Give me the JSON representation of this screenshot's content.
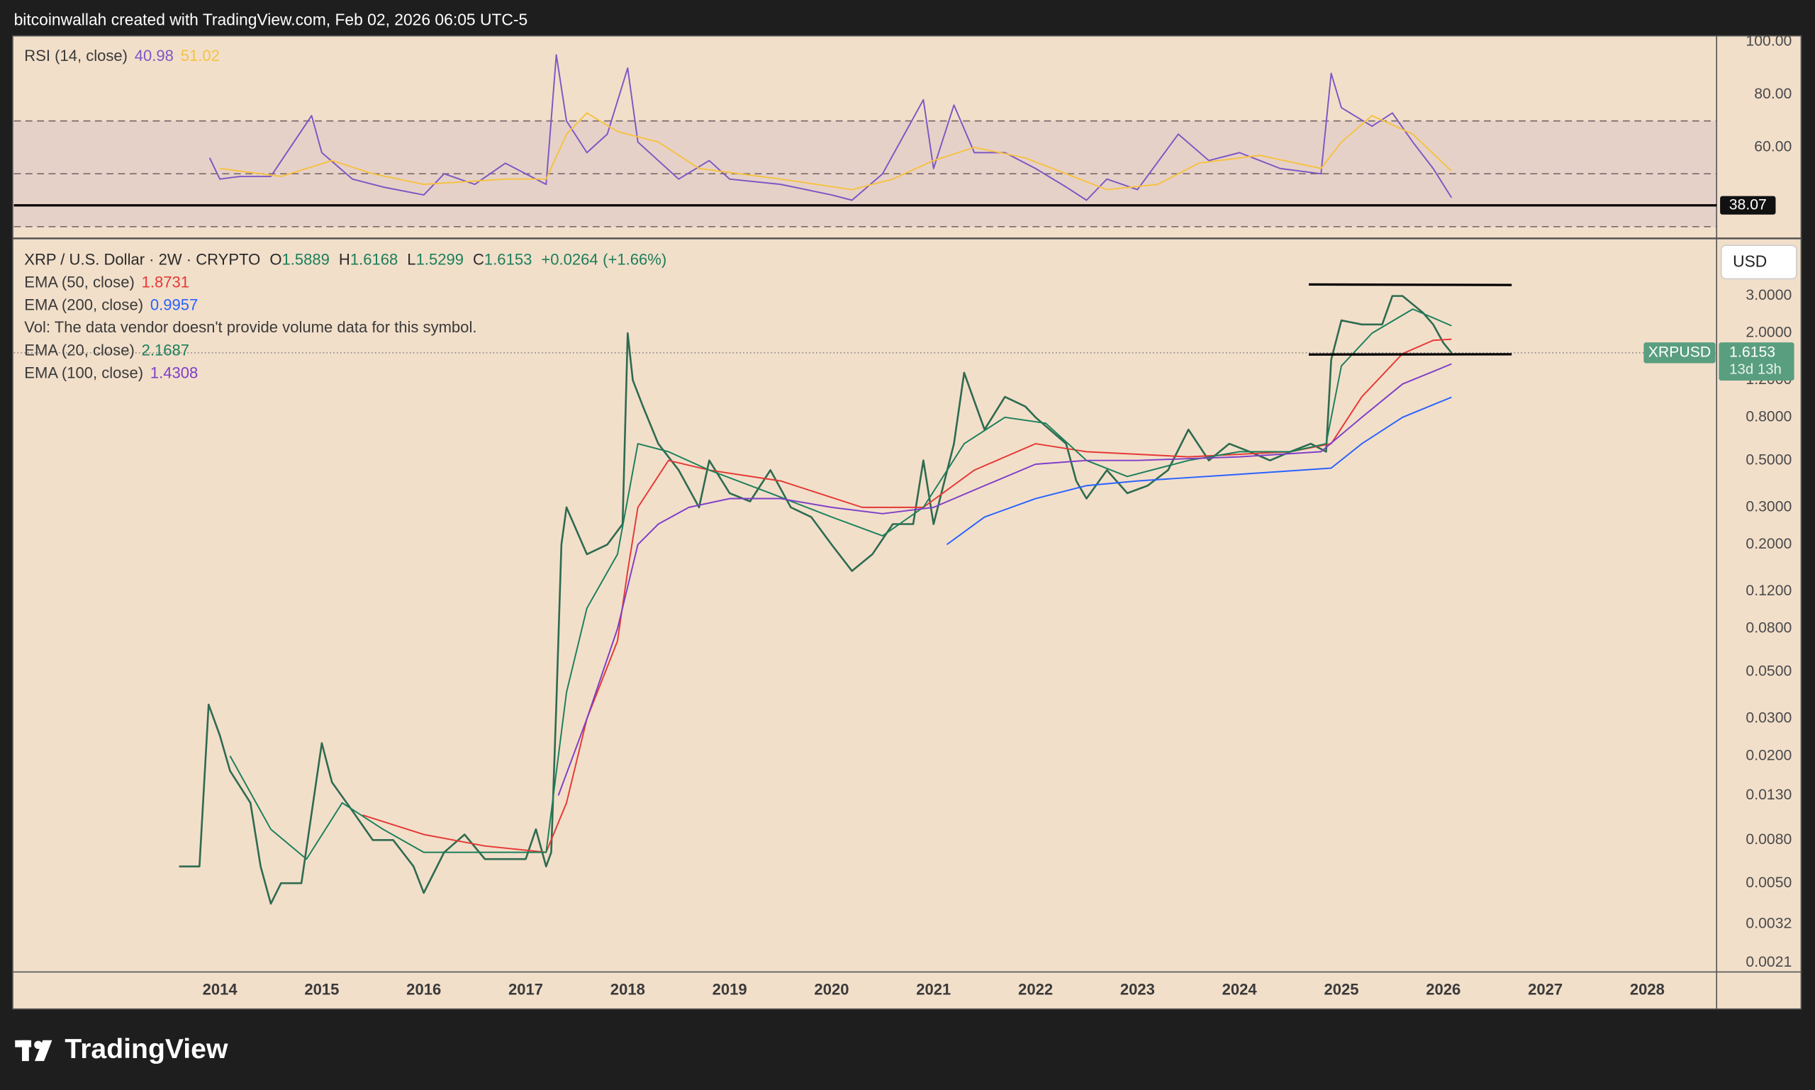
{
  "header": "bitcoinwallah created with TradingView.com, Feb 02, 2026 06:05 UTC-5",
  "footer_logo": "TradingView",
  "chart_data": [
    {
      "type": "line",
      "title": "RSI (14, close)",
      "xlim": [
        2011.98,
        2028.68
      ],
      "ylim": [
        26,
        101.3
      ],
      "yticks": [
        {
          "value": 100,
          "label": "100.00"
        },
        {
          "value": 80,
          "label": "80.00"
        },
        {
          "value": 60,
          "label": "60.00"
        }
      ],
      "levels": [
        70,
        50,
        30
      ],
      "band": [
        30,
        70
      ],
      "band_color": "#7e57c2",
      "hline": 38.07,
      "series": [
        {
          "color": "#7e57c2",
          "legend_value": 40.98,
          "x": [
            2013.9,
            2014.0,
            2014.2,
            2014.5,
            2014.9,
            2015.0,
            2015.3,
            2015.6,
            2016.0,
            2016.2,
            2016.5,
            2016.8,
            2017.0,
            2017.2,
            2017.3,
            2017.4,
            2017.6,
            2017.8,
            2018.0,
            2018.1,
            2018.5,
            2018.8,
            2019.0,
            2019.5,
            2020.0,
            2020.2,
            2020.5,
            2020.9,
            2021.0,
            2021.2,
            2021.4,
            2021.7,
            2022.0,
            2022.3,
            2022.5,
            2022.7,
            2023.0,
            2023.4,
            2023.7,
            2024.0,
            2024.4,
            2024.8,
            2024.9,
            2025.0,
            2025.3,
            2025.5,
            2025.7,
            2025.9,
            2026.08
          ],
          "values": [
            56,
            48,
            49,
            49,
            72,
            58,
            48,
            45,
            42,
            50,
            46,
            54,
            50,
            46,
            95,
            70,
            58,
            65,
            90,
            62,
            48,
            55,
            48,
            46,
            42,
            40,
            50,
            78,
            52,
            76,
            58,
            58,
            52,
            45,
            40,
            48,
            44,
            65,
            55,
            58,
            52,
            50,
            88,
            75,
            68,
            73,
            62,
            52,
            40.98
          ]
        },
        {
          "color": "#f5c242",
          "legend_value": 51.02,
          "x": [
            2014.0,
            2014.6,
            2015.1,
            2015.5,
            2016.0,
            2016.8,
            2017.2,
            2017.4,
            2017.6,
            2017.9,
            2018.3,
            2018.7,
            2019.5,
            2020.2,
            2020.6,
            2021.0,
            2021.4,
            2021.9,
            2022.3,
            2022.7,
            2023.2,
            2023.6,
            2024.2,
            2024.8,
            2025.0,
            2025.3,
            2025.7,
            2026.08
          ],
          "values": [
            52,
            49,
            55,
            50,
            46,
            48,
            48,
            65,
            73,
            66,
            62,
            52,
            48,
            44,
            48,
            55,
            60,
            56,
            50,
            44,
            46,
            54,
            57,
            52,
            62,
            72,
            65,
            51.02
          ]
        }
      ]
    },
    {
      "type": "line",
      "title": "XRP / U.S. Dollar · 2W · CRYPTO",
      "ohlc": [
        {
          "label": "O",
          "value": 1.5889
        },
        {
          "label": "H",
          "value": 1.6168
        },
        {
          "label": "L",
          "value": 1.5299
        },
        {
          "label": "C",
          "value": 1.6153
        }
      ],
      "change": {
        "value": 0.0264,
        "label": "+0.0264"
      },
      "change_percent": {
        "value": 1.66,
        "label": "(+1.66%)"
      },
      "volume_note": "Vol: The data vendor doesn't provide volume data for this symbol.",
      "currency": "USD",
      "last_price": {
        "symbol": "XRPUSD",
        "value": 1.6153,
        "countdown": "13d 13h",
        "color": "#5a9e80"
      },
      "log_scale": true,
      "xlim": [
        2011.98,
        2028.68
      ],
      "xticks": [
        2014,
        2015,
        2016,
        2017,
        2018,
        2019,
        2020,
        2021,
        2022,
        2023,
        2024,
        2025,
        2026,
        2027,
        2028
      ],
      "ylim": [
        0.00195,
        5.41
      ],
      "yticks": [
        {
          "value": 3,
          "label": "3.0000"
        },
        {
          "value": 2,
          "label": "2.0000"
        },
        {
          "value": 1.2,
          "label": "1.2000"
        },
        {
          "value": 0.8,
          "label": "0.8000"
        },
        {
          "value": 0.5,
          "label": "0.5000"
        },
        {
          "value": 0.3,
          "label": "0.3000"
        },
        {
          "value": 0.2,
          "label": "0.2000"
        },
        {
          "value": 0.12,
          "label": "0.1200"
        },
        {
          "value": 0.08,
          "label": "0.0800"
        },
        {
          "value": 0.05,
          "label": "0.0500"
        },
        {
          "value": 0.03,
          "label": "0.0300"
        },
        {
          "value": 0.02,
          "label": "0.0200"
        },
        {
          "value": 0.013,
          "label": "0.0130"
        },
        {
          "value": 0.008,
          "label": "0.0080"
        },
        {
          "value": 0.005,
          "label": "0.0050"
        },
        {
          "value": 0.0032,
          "label": "0.0032"
        },
        {
          "value": 0.0021,
          "label": "0.0021"
        }
      ],
      "trendlines": [
        {
          "x": [
            2024.68,
            2026.67
          ],
          "y": [
            3.4,
            3.38
          ]
        },
        {
          "x": [
            2024.68,
            2026.67
          ],
          "y": [
            1.585,
            1.59
          ]
        }
      ],
      "series": [
        {
          "color": "#2e6b50",
          "x": [
            2013.6,
            2013.8,
            2013.89,
            2014.0,
            2014.1,
            2014.3,
            2014.4,
            2014.5,
            2014.6,
            2014.8,
            2015.0,
            2015.1,
            2015.3,
            2015.5,
            2015.7,
            2015.9,
            2016.0,
            2016.2,
            2016.4,
            2016.6,
            2016.8,
            2017.0,
            2017.1,
            2017.2,
            2017.25,
            2017.3,
            2017.35,
            2017.4,
            2017.6,
            2017.8,
            2017.95,
            2018.0,
            2018.05,
            2018.15,
            2018.3,
            2018.5,
            2018.7,
            2018.8,
            2019.0,
            2019.2,
            2019.4,
            2019.6,
            2019.8,
            2020.0,
            2020.2,
            2020.4,
            2020.6,
            2020.8,
            2020.9,
            2021.0,
            2021.2,
            2021.3,
            2021.5,
            2021.7,
            2021.9,
            2022.0,
            2022.3,
            2022.4,
            2022.5,
            2022.7,
            2022.9,
            2023.1,
            2023.3,
            2023.5,
            2023.7,
            2023.9,
            2024.1,
            2024.3,
            2024.5,
            2024.7,
            2024.85,
            2024.9,
            2025.0,
            2025.2,
            2025.4,
            2025.5,
            2025.6,
            2025.8,
            2025.9,
            2026.0,
            2026.08
          ],
          "values": [
            0.006,
            0.006,
            0.035,
            0.025,
            0.017,
            0.012,
            0.006,
            0.004,
            0.005,
            0.005,
            0.023,
            0.015,
            0.011,
            0.008,
            0.008,
            0.006,
            0.0045,
            0.007,
            0.0085,
            0.0065,
            0.0065,
            0.0065,
            0.009,
            0.006,
            0.007,
            0.035,
            0.2,
            0.3,
            0.18,
            0.2,
            0.25,
            2.0,
            1.2,
            0.9,
            0.6,
            0.45,
            0.3,
            0.5,
            0.35,
            0.32,
            0.45,
            0.3,
            0.27,
            0.2,
            0.15,
            0.18,
            0.25,
            0.25,
            0.5,
            0.25,
            0.6,
            1.3,
            0.7,
            1.0,
            0.9,
            0.8,
            0.6,
            0.4,
            0.33,
            0.45,
            0.35,
            0.38,
            0.45,
            0.7,
            0.5,
            0.6,
            0.55,
            0.5,
            0.55,
            0.6,
            0.55,
            1.5,
            2.3,
            2.2,
            2.2,
            3.0,
            3.0,
            2.5,
            2.2,
            1.8,
            1.6153
          ]
        },
        {
          "name": "EMA (50, close)",
          "color": "#e53935",
          "legend_value": 1.8731,
          "x": [
            2015.4,
            2016.0,
            2016.6,
            2017.2,
            2017.4,
            2017.6,
            2017.9,
            2018.0,
            2018.1,
            2018.4,
            2018.8,
            2019.5,
            2020.3,
            2020.9,
            2021.4,
            2022.0,
            2022.5,
            2023.5,
            2024.5,
            2024.9,
            2025.2,
            2025.6,
            2025.9,
            2026.08
          ],
          "values": [
            0.0105,
            0.0085,
            0.0075,
            0.007,
            0.012,
            0.03,
            0.07,
            0.15,
            0.3,
            0.5,
            0.45,
            0.4,
            0.3,
            0.3,
            0.45,
            0.6,
            0.55,
            0.52,
            0.55,
            0.6,
            1.0,
            1.6,
            1.85,
            1.8731
          ]
        },
        {
          "name": "EMA (200, close)",
          "color": "#2962ff",
          "legend_value": 0.9957,
          "x": [
            2021.13,
            2021.5,
            2022.0,
            2022.5,
            2023.0,
            2024.0,
            2024.9,
            2025.2,
            2025.6,
            2026.08
          ],
          "values": [
            0.2,
            0.27,
            0.33,
            0.38,
            0.4,
            0.43,
            0.46,
            0.6,
            0.8,
            0.9957
          ]
        },
        {
          "name": "EMA (20, close)",
          "color": "#1b7f5b",
          "legend_value": 2.1687,
          "x": [
            2014.1,
            2014.5,
            2014.85,
            2015.2,
            2015.6,
            2016.0,
            2016.6,
            2017.2,
            2017.4,
            2017.6,
            2017.9,
            2018.1,
            2018.4,
            2018.8,
            2019.4,
            2020.0,
            2020.5,
            2020.9,
            2021.3,
            2021.7,
            2022.1,
            2022.5,
            2022.9,
            2023.5,
            2024.0,
            2024.5,
            2024.85,
            2025.0,
            2025.3,
            2025.7,
            2026.08
          ],
          "values": [
            0.02,
            0.009,
            0.0065,
            0.012,
            0.009,
            0.007,
            0.007,
            0.007,
            0.04,
            0.1,
            0.18,
            0.6,
            0.55,
            0.45,
            0.35,
            0.27,
            0.22,
            0.3,
            0.6,
            0.8,
            0.75,
            0.5,
            0.42,
            0.5,
            0.55,
            0.55,
            0.6,
            1.4,
            2.0,
            2.6,
            2.1687
          ]
        },
        {
          "name": "EMA (100, close)",
          "color": "#7e3fc8",
          "legend_value": 1.4308,
          "x": [
            2017.32,
            2017.6,
            2017.9,
            2018.1,
            2018.3,
            2018.6,
            2019.0,
            2019.5,
            2020.0,
            2020.5,
            2021.0,
            2021.5,
            2022.0,
            2022.5,
            2023.0,
            2024.0,
            2024.8,
            2025.2,
            2025.6,
            2026.08
          ],
          "values": [
            0.013,
            0.03,
            0.08,
            0.2,
            0.25,
            0.3,
            0.33,
            0.33,
            0.3,
            0.28,
            0.3,
            0.38,
            0.48,
            0.5,
            0.5,
            0.52,
            0.55,
            0.8,
            1.15,
            1.4308
          ]
        }
      ]
    }
  ]
}
